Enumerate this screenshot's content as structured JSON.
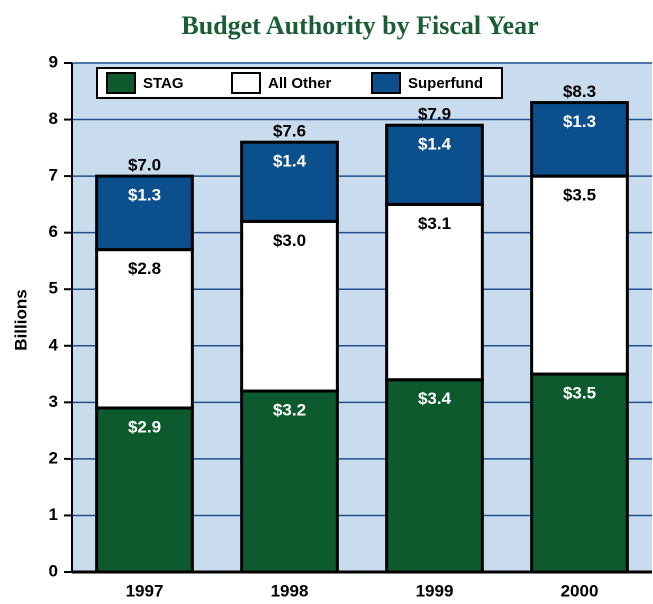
{
  "chart_data": {
    "type": "stacked_bar",
    "title": "Budget Authority by Fiscal Year",
    "y_label": "Billions",
    "categories": [
      "1997",
      "1998",
      "1999",
      "2000"
    ],
    "series": [
      {
        "name": "STAG",
        "color": "#0d5a2e",
        "values": [
          2.9,
          3.2,
          3.4,
          3.5
        ],
        "value_labels": [
          "$2.9",
          "$3.2",
          "$3.4",
          "$3.5"
        ]
      },
      {
        "name": "All Other",
        "color": "#ffffff",
        "values": [
          2.8,
          3.0,
          3.1,
          3.5
        ],
        "value_labels": [
          "$2.8",
          "$3.0",
          "$3.1",
          "$3.5"
        ]
      },
      {
        "name": "Superfund",
        "color": "#0b4f8c",
        "values": [
          1.3,
          1.4,
          1.4,
          1.3
        ],
        "value_labels": [
          "$1.3",
          "$1.4",
          "$1.4",
          "$1.3"
        ]
      }
    ],
    "totals": [
      7.0,
      7.6,
      7.9,
      8.3
    ],
    "total_labels": [
      "$7.0",
      "$7.6",
      "$7.9",
      "$8.3"
    ],
    "ylim": [
      0,
      9
    ],
    "yticks": [
      0,
      1,
      2,
      3,
      4,
      5,
      6,
      7,
      8,
      9
    ],
    "grid": true,
    "legend": "top-left"
  }
}
